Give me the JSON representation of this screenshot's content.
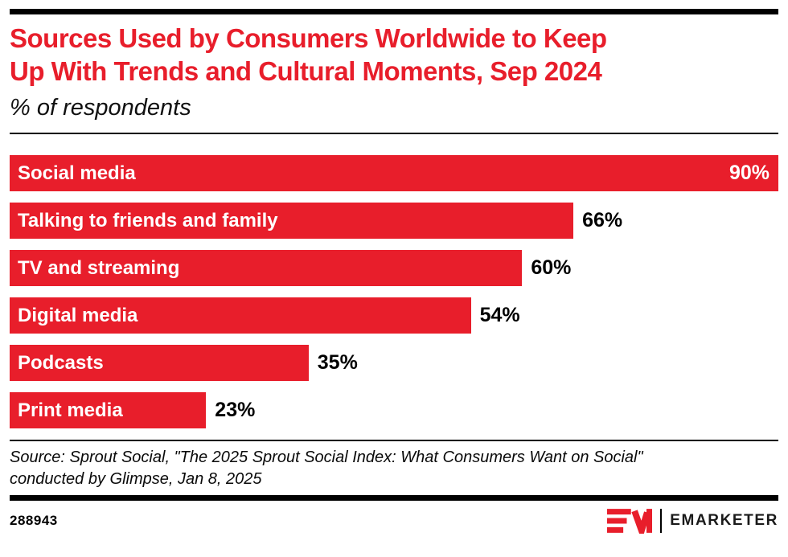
{
  "page": {
    "background": "#FFFFFF",
    "accent_red": "#E81E2B",
    "text_black": "#000000"
  },
  "header": {
    "title_line1": "Sources Used by Consumers Worldwide to Keep",
    "title_line2": "Up With Trends and Cultural Moments, Sep 2024",
    "subtitle": "% of respondents"
  },
  "chart_data": {
    "type": "bar",
    "orientation": "horizontal",
    "title": "Sources Used by Consumers Worldwide to Keep Up With Trends and Cultural Moments, Sep 2024",
    "subtitle": "% of respondents",
    "categories": [
      "Social media",
      "Talking to friends and family",
      "TV and streaming",
      "Digital media",
      "Podcasts",
      "Print media"
    ],
    "values": [
      90,
      66,
      60,
      54,
      35,
      23
    ],
    "value_suffix": "%",
    "xlim": [
      0,
      90
    ],
    "bar_color": "#E81E2B",
    "category_label_position": "inside-left",
    "category_label_color": "#FFFFFF",
    "value_label_color_outside": "#000000",
    "value_label_inside_threshold": 85,
    "grid": false,
    "legend": "none",
    "axes_shown": false
  },
  "footer": {
    "source_line1": "Source: Sprout Social, \"The 2025 Sprout Social Index: What Consumers Want on Social\"",
    "source_line2": "conducted by Glimpse, Jan 8, 2025",
    "chart_id": "288943",
    "brand": "EMARKETER"
  }
}
